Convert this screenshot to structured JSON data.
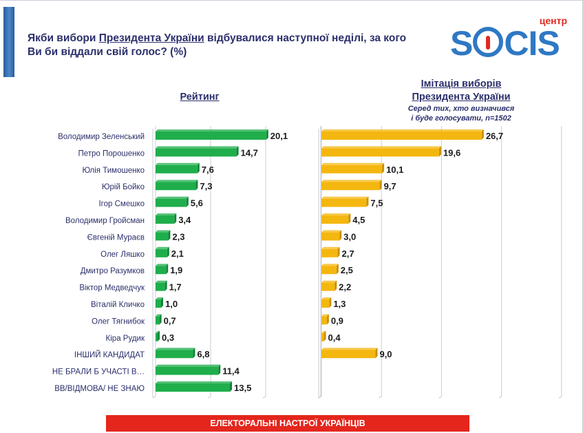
{
  "header": {
    "title_part1": "Якби вибори ",
    "title_link": "Президента України",
    "title_part2": " відбувалися наступної неділі, за кого Ви би віддали свій голос? (%)"
  },
  "logo": {
    "prefix": "центр",
    "word_start": "S",
    "word_end": "CIS"
  },
  "panels": {
    "left_title": "Рейтинг",
    "right_title_line1": "Імітація виборів",
    "right_title_line2": "Президента України",
    "right_sub_line1": "Серед тих, хто визначився",
    "right_sub_line2": "і буде голосувати, n=1502"
  },
  "footer": {
    "text": "ЕЛЕКТОРАЛЬНІ НАСТРОЇ УКРАЇНЦІВ"
  },
  "colors": {
    "green": "#1fae4b",
    "green_dark": "#12843a",
    "yellow": "#f4b70f",
    "yellow_dark": "#c98f00",
    "label": "#2b2f6b"
  },
  "chart_data": [
    {
      "type": "bar",
      "orientation": "horizontal",
      "title": "Рейтинг",
      "xlim": [
        0,
        30
      ],
      "categories": [
        "Володимир Зеленський",
        "Петро Порошенко",
        "Юлія Тимошенко",
        "Юрій Бойко",
        "Ігор Смешко",
        "Володимир Гройсман",
        "Євгеній Мураєв",
        "Олег Ляшко",
        "Дмитро Разумков",
        "Віктор Медведчук",
        "Віталій Кличко",
        "Олег Тягнибок",
        "Кіра Рудик",
        "ІНШИЙ КАНДИДАТ",
        "НЕ БРАЛИ Б УЧАСТІ В…",
        "ВВ/ВІДМОВА/ НЕ ЗНАЮ"
      ],
      "values": [
        20.1,
        14.7,
        7.6,
        7.3,
        5.6,
        3.4,
        2.3,
        2.1,
        1.9,
        1.7,
        1.0,
        0.7,
        0.3,
        6.8,
        11.4,
        13.5
      ],
      "labels": [
        "20,1",
        "14,7",
        "7,6",
        "7,3",
        "5,6",
        "3,4",
        "2,3",
        "2,1",
        "1,9",
        "1,7",
        "1,0",
        "0,7",
        "0,3",
        "6,8",
        "11,4",
        "13,5"
      ]
    },
    {
      "type": "bar",
      "orientation": "horizontal",
      "title": "Імітація виборів Президента України",
      "xlim": [
        0,
        40
      ],
      "categories": [
        "Володимир Зеленський",
        "Петро Порошенко",
        "Юлія Тимошенко",
        "Юрій Бойко",
        "Ігор Смешко",
        "Володимир Гройсман",
        "Євгеній Мураєв",
        "Олег Ляшко",
        "Дмитро Разумков",
        "Віктор Медведчук",
        "Віталій Кличко",
        "Олег Тягнибок",
        "Кіра Рудик",
        "ІНШИЙ КАНДИДАТ"
      ],
      "values": [
        26.7,
        19.6,
        10.1,
        9.7,
        7.5,
        4.5,
        3.0,
        2.7,
        2.5,
        2.2,
        1.3,
        0.9,
        0.4,
        9.0
      ],
      "labels": [
        "26,7",
        "19,6",
        "10,1",
        "9,7",
        "7,5",
        "4,5",
        "3,0",
        "2,7",
        "2,5",
        "2,2",
        "1,3",
        "0,9",
        "0,4",
        "9,0"
      ]
    }
  ]
}
